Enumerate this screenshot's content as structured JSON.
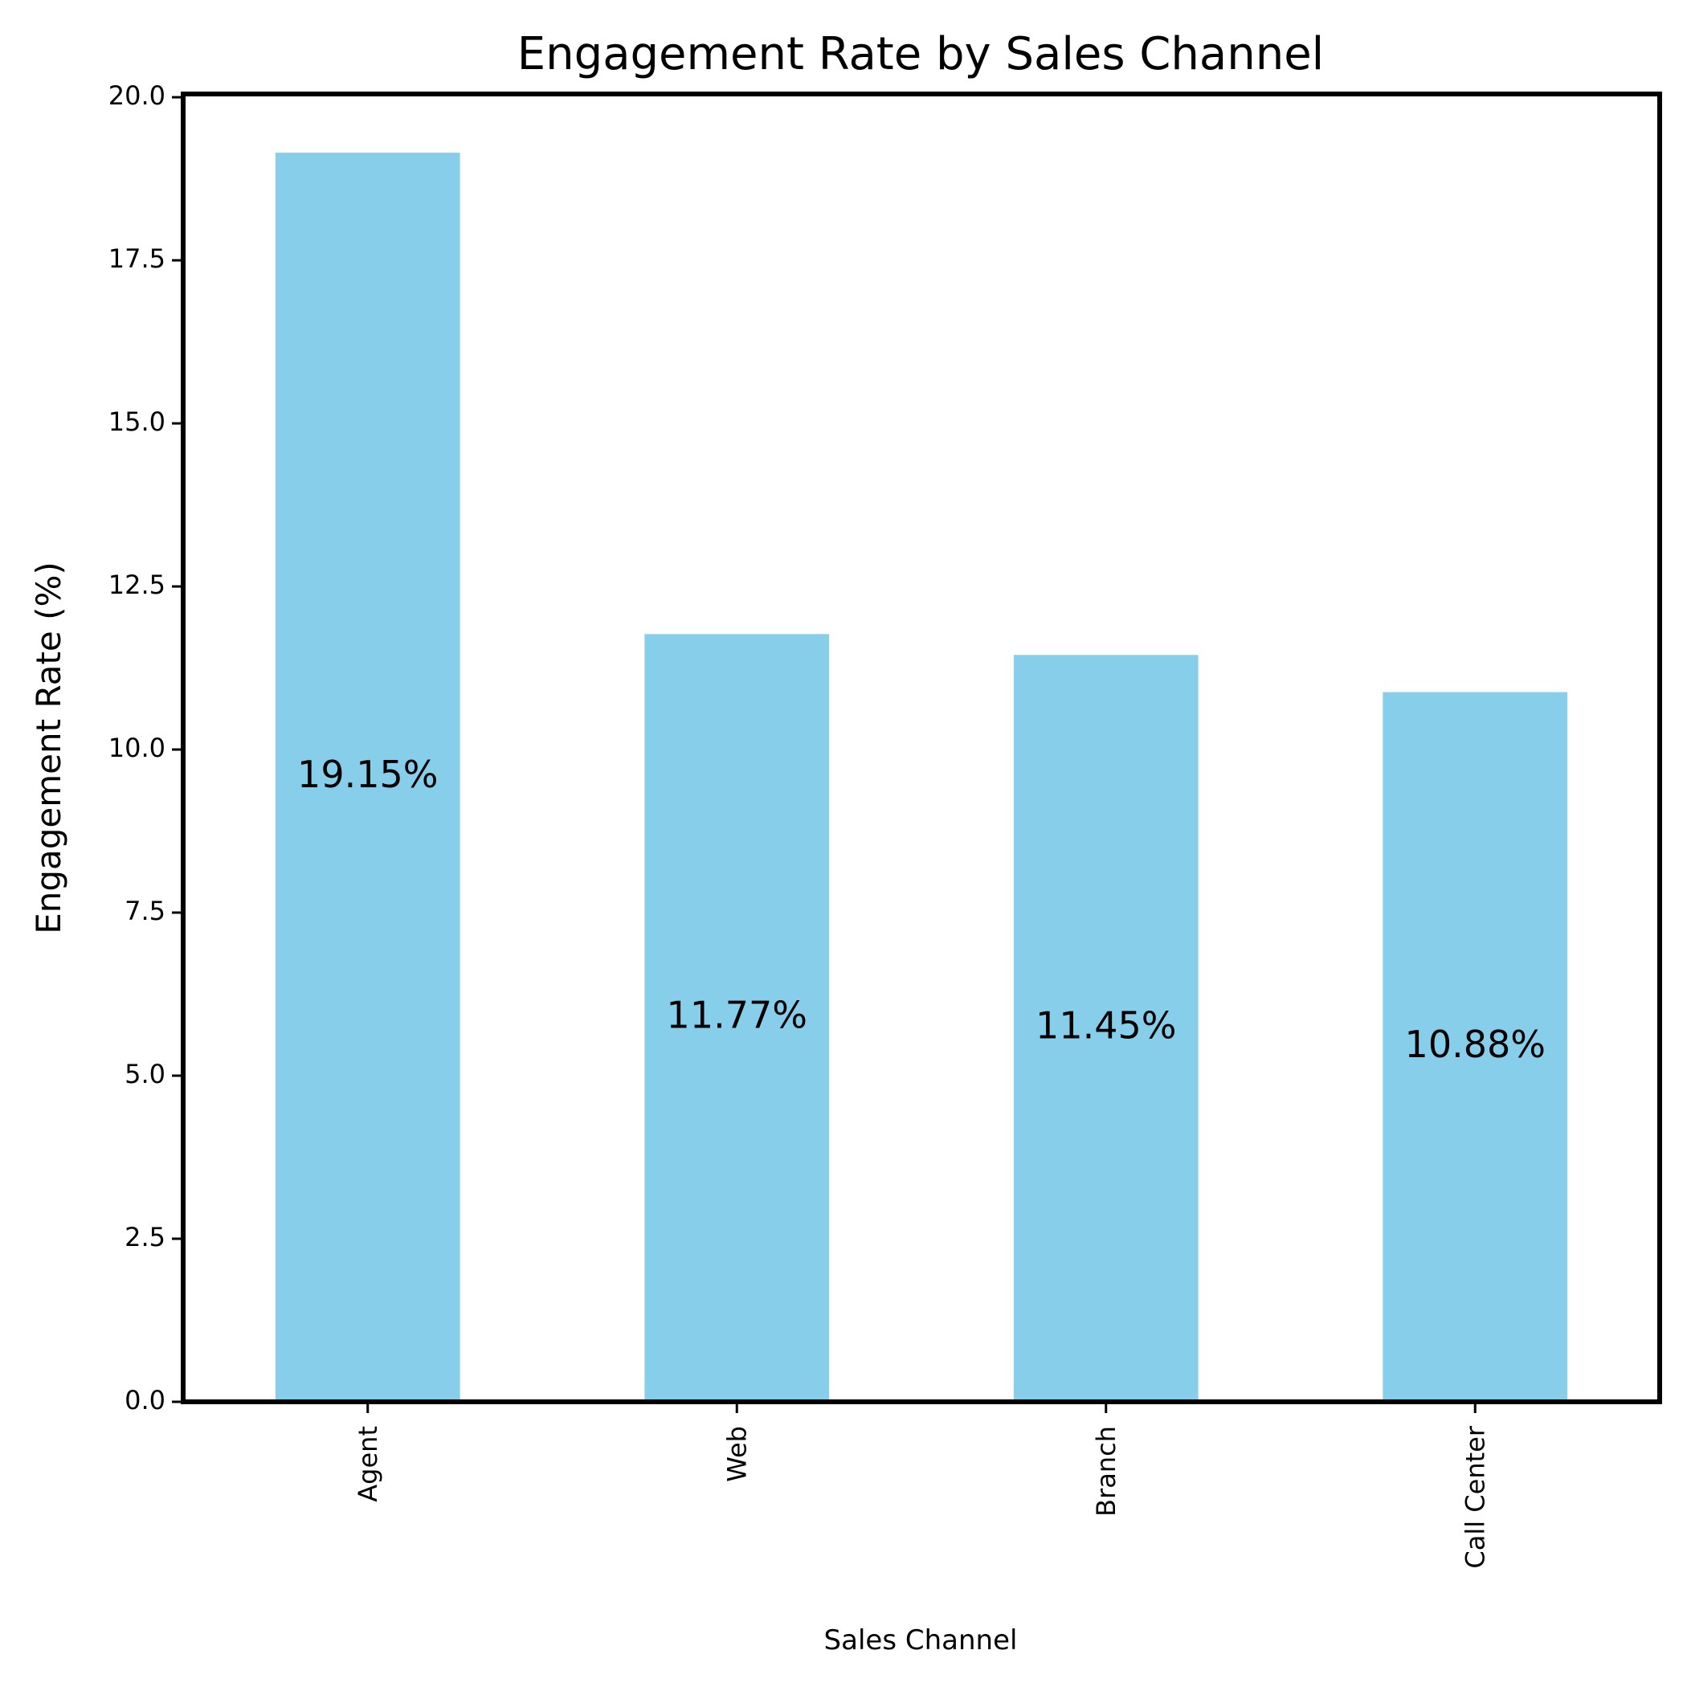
{
  "chart_data": {
    "type": "bar",
    "title": "Engagement Rate by Sales Channel",
    "xlabel": "Sales Channel",
    "ylabel": "Engagement Rate (%)",
    "categories": [
      "Agent",
      "Web",
      "Branch",
      "Call Center"
    ],
    "values": [
      19.15,
      11.77,
      11.45,
      10.88
    ],
    "data_labels": [
      "19.15%",
      "11.77%",
      "11.45%",
      "10.88%"
    ],
    "ylim": [
      0,
      20.05
    ],
    "yticks": [
      0.0,
      2.5,
      5.0,
      7.5,
      10.0,
      12.5,
      15.0,
      17.5,
      20.0
    ],
    "ytick_labels": [
      "0.0",
      "2.5",
      "5.0",
      "7.5",
      "10.0",
      "12.5",
      "15.0",
      "17.5",
      "20.0"
    ],
    "bar_color": "#87ceeb",
    "grid": false,
    "legend": false
  }
}
